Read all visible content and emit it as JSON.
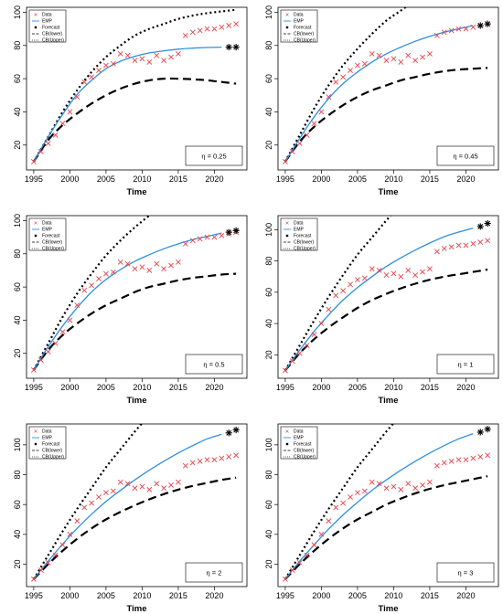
{
  "figure": {
    "description_free": true
  },
  "style": {
    "data_color": "#e8404a",
    "emp_color": "#2f8fe0",
    "band_color": "#000000"
  },
  "chart_data": [
    {
      "type": "line",
      "panel_label": "η = 0.25",
      "xlabel": "Time",
      "ylabel": "",
      "xlim": [
        1994,
        2024.5
      ],
      "ylim": [
        5,
        103
      ],
      "xticks": [
        "1995",
        "2000",
        "2005",
        "2010",
        "2015",
        "2020"
      ],
      "yticks": [
        "20",
        "40",
        "60",
        "80",
        "100"
      ],
      "legend": [
        "Data",
        "EMP",
        "Forecast",
        "CB(lower)",
        "CB(Upper)"
      ],
      "data_x": [
        1995,
        1996,
        1997,
        1998,
        1999,
        2000,
        2001,
        2002,
        2003,
        2004,
        2005,
        2006,
        2007,
        2008,
        2009,
        2010,
        2011,
        2012,
        2013,
        2014,
        2015,
        2016,
        2017,
        2018,
        2019,
        2020,
        2021,
        2022,
        2023
      ],
      "data_y": [
        10,
        16,
        21,
        26,
        33,
        40,
        49,
        58,
        61,
        65,
        68,
        69,
        75,
        74,
        71,
        72,
        70,
        74,
        71,
        73,
        75,
        86,
        88,
        89,
        90,
        90,
        91,
        92,
        93
      ],
      "emp_x": [
        1995,
        1997,
        1999,
        2001,
        2003,
        2005,
        2007,
        2009,
        2011,
        2013,
        2015,
        2017,
        2019,
        2021
      ],
      "emp_y": [
        10,
        25,
        38.5,
        50.5,
        59,
        66,
        70.5,
        73.5,
        75.5,
        76.8,
        77.8,
        78.4,
        78.8,
        79
      ],
      "forecast_x": [
        2022,
        2023
      ],
      "forecast_y": [
        79,
        79
      ],
      "ub_x": [
        1995,
        1997,
        1999,
        2001,
        2003,
        2005,
        2007,
        2009,
        2011,
        2013,
        2015,
        2017,
        2019,
        2021,
        2023
      ],
      "ub_y": [
        10,
        25,
        40,
        53,
        64,
        73,
        80,
        86,
        90,
        93,
        96,
        98,
        99.5,
        100.5,
        101.5
      ],
      "lb_x": [
        1995,
        1997,
        1999,
        2001,
        2003,
        2005,
        2007,
        2009,
        2011,
        2013,
        2015,
        2017,
        2019,
        2021,
        2023
      ],
      "lb_y": [
        10,
        23,
        32,
        39,
        45,
        50,
        54,
        57,
        59,
        60,
        60,
        59.6,
        59,
        58,
        57
      ]
    },
    {
      "type": "line",
      "panel_label": "η = 0.45",
      "xlabel": "Time",
      "ylabel": "",
      "xlim": [
        1994,
        2024.5
      ],
      "ylim": [
        5,
        103
      ],
      "xticks": [
        "1995",
        "2000",
        "2005",
        "2010",
        "2015",
        "2020"
      ],
      "yticks": [
        "20",
        "40",
        "60",
        "80",
        "100"
      ],
      "legend": [
        "Data",
        "EMP",
        "Forecast",
        "CB(lower)",
        "CB(Upper)"
      ],
      "data_x": [
        1995,
        1996,
        1997,
        1998,
        1999,
        2000,
        2001,
        2002,
        2003,
        2004,
        2005,
        2006,
        2007,
        2008,
        2009,
        2010,
        2011,
        2012,
        2013,
        2014,
        2015,
        2016,
        2017,
        2018,
        2019,
        2020,
        2021,
        2022,
        2023
      ],
      "data_y": [
        10,
        16,
        21,
        26,
        33,
        40,
        49,
        58,
        61,
        65,
        68,
        69,
        75,
        74,
        71,
        72,
        70,
        74,
        71,
        73,
        75,
        86,
        88,
        89,
        90,
        90,
        91,
        92,
        93
      ],
      "emp_x": [
        1995,
        1997,
        1999,
        2001,
        2003,
        2005,
        2007,
        2009,
        2011,
        2013,
        2015,
        2017,
        2019,
        2021
      ],
      "emp_y": [
        10,
        24,
        37,
        48,
        57,
        64,
        70,
        75,
        79,
        82.5,
        85.5,
        88,
        90,
        92
      ],
      "forecast_x": [
        2022,
        2023
      ],
      "forecast_y": [
        92,
        93
      ],
      "ub_x": [
        1995,
        1997,
        1999,
        2001,
        2003,
        2005,
        2007,
        2009,
        2011,
        2013,
        2015,
        2017
      ],
      "ub_y": [
        10,
        26,
        42,
        56,
        68,
        78,
        87,
        95,
        101,
        107,
        112,
        117
      ],
      "lb_x": [
        1995,
        1997,
        1999,
        2001,
        2003,
        2005,
        2007,
        2009,
        2011,
        2013,
        2015,
        2017,
        2019,
        2021,
        2023
      ],
      "lb_y": [
        10,
        22,
        31,
        38,
        44,
        49,
        53,
        56,
        59,
        61,
        63,
        64.5,
        65.5,
        66,
        66.5
      ]
    },
    {
      "type": "line",
      "panel_label": "η = 0.5",
      "xlabel": "Time",
      "ylabel": "",
      "xlim": [
        1994,
        2024.5
      ],
      "ylim": [
        5,
        103
      ],
      "xticks": [
        "1995",
        "2000",
        "2005",
        "2010",
        "2015",
        "2020"
      ],
      "yticks": [
        "20",
        "40",
        "60",
        "80",
        "100"
      ],
      "legend": [
        "Data",
        "EMP",
        "Forecast",
        "CB(lower)",
        "CB(Upper)"
      ],
      "data_x": [
        1995,
        1996,
        1997,
        1998,
        1999,
        2000,
        2001,
        2002,
        2003,
        2004,
        2005,
        2006,
        2007,
        2008,
        2009,
        2010,
        2011,
        2012,
        2013,
        2014,
        2015,
        2016,
        2017,
        2018,
        2019,
        2020,
        2021,
        2022,
        2023
      ],
      "data_y": [
        10,
        16,
        21,
        26,
        33,
        40,
        49,
        58,
        61,
        65,
        68,
        69,
        75,
        74,
        71,
        72,
        70,
        74,
        71,
        73,
        75,
        86,
        88,
        89,
        90,
        90,
        91,
        92,
        93
      ],
      "emp_x": [
        1995,
        1997,
        1999,
        2001,
        2003,
        2005,
        2007,
        2009,
        2011,
        2013,
        2015,
        2017,
        2019,
        2021
      ],
      "emp_y": [
        10,
        24,
        36.5,
        47.5,
        57,
        64.5,
        70.5,
        75.5,
        79.5,
        83,
        86,
        88.5,
        90.5,
        92.5
      ],
      "forecast_x": [
        2022,
        2023
      ],
      "forecast_y": [
        93,
        94
      ],
      "ub_x": [
        1995,
        1997,
        1999,
        2001,
        2003,
        2005,
        2007,
        2009,
        2011,
        2013,
        2015,
        2017
      ],
      "ub_y": [
        10,
        26,
        42,
        56,
        68,
        79,
        88,
        96,
        103,
        109,
        114,
        119
      ],
      "lb_x": [
        1995,
        1997,
        1999,
        2001,
        2003,
        2005,
        2007,
        2009,
        2011,
        2013,
        2015,
        2017,
        2019,
        2021,
        2023
      ],
      "lb_y": [
        10,
        22,
        31,
        38,
        44,
        49,
        53,
        57,
        60,
        62,
        64,
        65.5,
        66.5,
        67.5,
        68
      ]
    },
    {
      "type": "line",
      "panel_label": "η = 1",
      "xlabel": "Time",
      "ylabel": "",
      "xlim": [
        1994,
        2024.5
      ],
      "ylim": [
        5,
        109
      ],
      "xticks": [
        "1995",
        "2000",
        "2005",
        "2010",
        "2015",
        "2020"
      ],
      "yticks": [
        "20",
        "40",
        "60",
        "80",
        "100"
      ],
      "legend": [
        "Data",
        "EMP",
        "Forecast",
        "CB(lower)",
        "CB(Upper)"
      ],
      "data_x": [
        1995,
        1996,
        1997,
        1998,
        1999,
        2000,
        2001,
        2002,
        2003,
        2004,
        2005,
        2006,
        2007,
        2008,
        2009,
        2010,
        2011,
        2012,
        2013,
        2014,
        2015,
        2016,
        2017,
        2018,
        2019,
        2020,
        2021,
        2022,
        2023
      ],
      "data_y": [
        10,
        16,
        21,
        26,
        33,
        40,
        49,
        58,
        61,
        65,
        68,
        69,
        75,
        74,
        71,
        72,
        70,
        74,
        71,
        73,
        75,
        86,
        88,
        89,
        90,
        90,
        91,
        92,
        93
      ],
      "emp_x": [
        1995,
        1997,
        1999,
        2001,
        2003,
        2005,
        2007,
        2009,
        2011,
        2013,
        2015,
        2017,
        2019,
        2021
      ],
      "emp_y": [
        10,
        23,
        35,
        45.5,
        55,
        63,
        70,
        76.5,
        82,
        87,
        91.5,
        95.5,
        98.5,
        101
      ],
      "forecast_x": [
        2022,
        2023
      ],
      "forecast_y": [
        102,
        104
      ],
      "ub_x": [
        1995,
        1997,
        1999,
        2001,
        2003,
        2005,
        2007,
        2009,
        2011,
        2013,
        2015
      ],
      "ub_y": [
        10,
        26,
        42,
        57,
        71,
        84,
        95,
        106,
        116,
        125,
        133
      ],
      "lb_x": [
        1995,
        1997,
        1999,
        2001,
        2003,
        2005,
        2007,
        2009,
        2011,
        2013,
        2015,
        2017,
        2019,
        2021,
        2023
      ],
      "lb_y": [
        10,
        21,
        30,
        37.5,
        44,
        50,
        55,
        59,
        62.5,
        65.5,
        68,
        70,
        71.5,
        73,
        74.5
      ]
    },
    {
      "type": "line",
      "panel_label": "η = 2",
      "xlabel": "Time",
      "ylabel": "",
      "xlim": [
        1994,
        2024.5
      ],
      "ylim": [
        5,
        114
      ],
      "xticks": [
        "1995",
        "2000",
        "2005",
        "2010",
        "2015",
        "2020"
      ],
      "yticks": [
        "20",
        "40",
        "60",
        "80",
        "100"
      ],
      "legend": [
        "Data",
        "EMP",
        "Forecast",
        "CB(lower)",
        "CB(Upper)"
      ],
      "data_x": [
        1995,
        1996,
        1997,
        1998,
        1999,
        2000,
        2001,
        2002,
        2003,
        2004,
        2005,
        2006,
        2007,
        2008,
        2009,
        2010,
        2011,
        2012,
        2013,
        2014,
        2015,
        2016,
        2017,
        2018,
        2019,
        2020,
        2021,
        2022,
        2023
      ],
      "data_y": [
        10,
        16,
        21,
        26,
        33,
        40,
        49,
        58,
        61,
        65,
        68,
        69,
        75,
        74,
        71,
        72,
        70,
        74,
        71,
        73,
        75,
        86,
        88,
        89,
        90,
        90,
        91,
        92,
        93
      ],
      "emp_x": [
        1995,
        1997,
        1999,
        2001,
        2003,
        2005,
        2007,
        2009,
        2011,
        2013,
        2015,
        2017,
        2019,
        2021
      ],
      "emp_y": [
        10,
        22,
        33.5,
        44,
        53.5,
        62,
        69.5,
        76.5,
        83,
        89,
        94.5,
        99.5,
        104,
        107
      ],
      "forecast_x": [
        2022,
        2023
      ],
      "forecast_y": [
        108,
        110
      ],
      "ub_x": [
        1995,
        1997,
        1999,
        2001,
        2003,
        2005,
        2007,
        2009,
        2011,
        2013,
        2015
      ],
      "ub_y": [
        10,
        26,
        42,
        57,
        71,
        85,
        97,
        109,
        120,
        131,
        141
      ],
      "lb_x": [
        1995,
        1997,
        1999,
        2001,
        2003,
        2005,
        2007,
        2009,
        2011,
        2013,
        2015,
        2017,
        2019,
        2021,
        2023
      ],
      "lb_y": [
        10,
        20,
        29,
        37,
        44,
        50,
        55,
        59.5,
        63.5,
        67,
        70,
        72.5,
        74.5,
        76.5,
        78
      ]
    },
    {
      "type": "line",
      "panel_label": "η = 3",
      "xlabel": "Time",
      "ylabel": "",
      "xlim": [
        1994,
        2024.5
      ],
      "ylim": [
        5,
        114
      ],
      "xticks": [
        "1995",
        "2000",
        "2005",
        "2010",
        "2015",
        "2020"
      ],
      "yticks": [
        "20",
        "40",
        "60",
        "80",
        "100"
      ],
      "legend": [
        "Data",
        "EMP",
        "Forecast",
        "CB(lower)",
        "CB(Upper)"
      ],
      "data_x": [
        1995,
        1996,
        1997,
        1998,
        1999,
        2000,
        2001,
        2002,
        2003,
        2004,
        2005,
        2006,
        2007,
        2008,
        2009,
        2010,
        2011,
        2012,
        2013,
        2014,
        2015,
        2016,
        2017,
        2018,
        2019,
        2020,
        2021,
        2022,
        2023
      ],
      "data_y": [
        10,
        16,
        21,
        26,
        33,
        40,
        49,
        58,
        61,
        65,
        68,
        69,
        75,
        74,
        71,
        72,
        70,
        74,
        71,
        73,
        75,
        86,
        88,
        89,
        90,
        90,
        91,
        92,
        93
      ],
      "emp_x": [
        1995,
        1997,
        1999,
        2001,
        2003,
        2005,
        2007,
        2009,
        2011,
        2013,
        2015,
        2017,
        2019,
        2021
      ],
      "emp_y": [
        10,
        22,
        33,
        43.5,
        53,
        61.5,
        69.5,
        76.5,
        83,
        89,
        94.5,
        99.5,
        104,
        107.5
      ],
      "forecast_x": [
        2022,
        2023
      ],
      "forecast_y": [
        108.5,
        110.5
      ],
      "ub_x": [
        1995,
        1997,
        1999,
        2001,
        2003,
        2005,
        2007,
        2009,
        2011,
        2013,
        2015
      ],
      "ub_y": [
        10,
        26,
        42,
        57,
        71,
        85,
        97,
        109,
        120,
        131,
        141
      ],
      "lb_x": [
        1995,
        1997,
        1999,
        2001,
        2003,
        2005,
        2007,
        2009,
        2011,
        2013,
        2015,
        2017,
        2019,
        2021,
        2023
      ],
      "lb_y": [
        10,
        20,
        29,
        37,
        44,
        50,
        55,
        60,
        64,
        67.5,
        70.5,
        73,
        75,
        77,
        79
      ]
    }
  ]
}
